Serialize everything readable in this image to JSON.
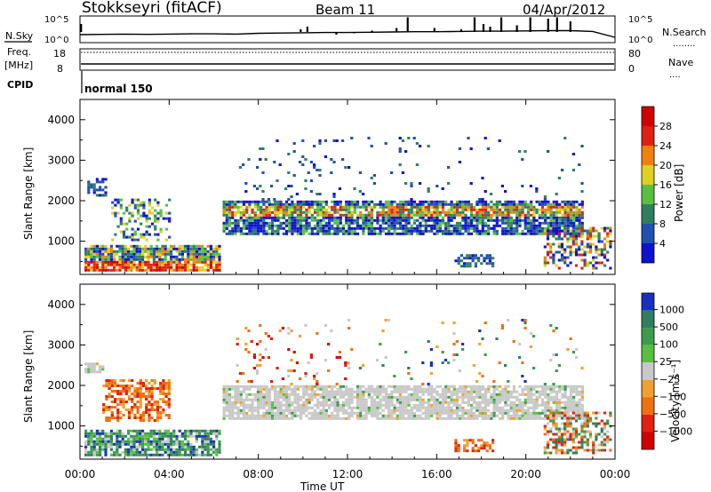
{
  "header": {
    "station": "Stokkseyri (fitACF)",
    "beam": "Beam 11",
    "date": "04/Apr/2012"
  },
  "chart_data": [
    {
      "type": "line",
      "name": "noise-panel",
      "left_labels": {
        "nsky": "N.Sky"
      },
      "right_labels": {
        "nsearch": "N.Search",
        "nsearch_dots": "........"
      },
      "left_ticks": [
        "10^5",
        "10^0"
      ],
      "right_ticks": [
        "10^5",
        "10^0"
      ],
      "x": [
        0,
        1,
        2,
        3,
        4,
        5,
        6,
        7,
        8,
        9,
        10,
        11,
        12,
        13,
        14,
        15,
        16,
        17,
        18,
        19,
        20,
        21,
        22,
        23,
        24
      ],
      "series": [
        {
          "values": [
            0.3,
            0.31,
            0.32,
            0.31,
            0.32,
            0.33,
            0.33,
            0.32,
            0.35,
            0.36,
            0.37,
            0.38,
            0.38,
            0.39,
            0.4,
            0.41,
            0.41,
            0.42,
            0.43,
            0.43,
            0.44,
            0.45,
            0.45,
            0.42,
            0.2
          ]
        }
      ],
      "spikes": [
        {
          "x": 0.05,
          "h": 0.7
        },
        {
          "x": 9.9,
          "h": 0.5
        },
        {
          "x": 10.2,
          "h": 0.6
        },
        {
          "x": 11.5,
          "h": 0.3
        },
        {
          "x": 12.3,
          "h": 0.35
        },
        {
          "x": 13.1,
          "h": 0.45
        },
        {
          "x": 14.2,
          "h": 0.55
        },
        {
          "x": 14.7,
          "h": 0.95
        },
        {
          "x": 15.3,
          "h": 0.4
        },
        {
          "x": 15.9,
          "h": 0.55
        },
        {
          "x": 17.1,
          "h": 0.5
        },
        {
          "x": 17.7,
          "h": 0.95
        },
        {
          "x": 18.1,
          "h": 0.7
        },
        {
          "x": 18.4,
          "h": 0.6
        },
        {
          "x": 18.9,
          "h": 0.95
        },
        {
          "x": 19.6,
          "h": 0.65
        },
        {
          "x": 20.2,
          "h": 0.95
        },
        {
          "x": 21.0,
          "h": 0.9
        },
        {
          "x": 21.4,
          "h": 0.95
        },
        {
          "x": 22.0,
          "h": 0.8
        }
      ]
    },
    {
      "type": "line",
      "name": "freq-panel",
      "left_labels": {
        "freq": "Freq.",
        "unit": "[MHz]",
        "cpid": "CPID"
      },
      "right_labels": {
        "nave": "Nave",
        "nave_dots": "...."
      },
      "left_ticks": [
        "18",
        "8"
      ],
      "right_ticks": [
        "80",
        "0"
      ],
      "freq_value": 11.5,
      "nave_value": 78,
      "cpid_name": "normal 150"
    },
    {
      "type": "heatmap",
      "name": "power-panel",
      "ylabel": "Slant Range [km]",
      "ylim": [
        180,
        4500
      ],
      "yticks": [
        1000,
        2000,
        3000,
        4000
      ],
      "xlim": [
        0,
        24
      ],
      "colorbar": {
        "label": "Power [dB]",
        "ticks": [
          "4",
          "8",
          "12",
          "16",
          "20",
          "24",
          "28"
        ],
        "colors": [
          "#1010d0",
          "#2050b0",
          "#2f7f5f",
          "#58c040",
          "#e0d020",
          "#f08010",
          "#e02010",
          "#d00000"
        ]
      },
      "regions": [
        {
          "x0": 0.2,
          "x1": 6.2,
          "r0": 250,
          "r1": 900,
          "profile": "hot"
        },
        {
          "x0": 0.2,
          "x1": 1.2,
          "r0": 2100,
          "r1": 2550,
          "profile": "weak"
        },
        {
          "x0": 1.4,
          "x1": 4.0,
          "r0": 1000,
          "r1": 2050,
          "profile": "patchy"
        },
        {
          "x0": 6.4,
          "x1": 22.5,
          "r0": 1150,
          "r1": 1950,
          "profile": "band"
        },
        {
          "x0": 7.0,
          "x1": 12.0,
          "r0": 2000,
          "r1": 3500,
          "profile": "scatter"
        },
        {
          "x0": 12.0,
          "x1": 22.5,
          "r0": 2000,
          "r1": 3600,
          "profile": "sparse"
        },
        {
          "x0": 16.8,
          "x1": 18.5,
          "r0": 350,
          "r1": 650,
          "profile": "weak"
        },
        {
          "x0": 20.8,
          "x1": 23.8,
          "r0": 300,
          "r1": 1300,
          "profile": "mixed"
        }
      ]
    },
    {
      "type": "heatmap",
      "name": "velocity-panel",
      "ylabel": "Slant Range [km]",
      "xlabel": "Time UT",
      "ylim": [
        180,
        4500
      ],
      "yticks": [
        1000,
        2000,
        3000,
        4000
      ],
      "xlim": [
        0,
        24
      ],
      "xticks": [
        "00:00",
        "04:00",
        "08:00",
        "12:00",
        "16:00",
        "20:00",
        "00:00"
      ],
      "colorbar": {
        "label": "Velocity [m s⁻¹]",
        "ticks": [
          "1000",
          "500",
          "100",
          "25",
          "−25",
          "−100",
          "−500",
          "−1000"
        ],
        "colors": [
          "#1830c0",
          "#2f7f5f",
          "#3c9c4c",
          "#58c040",
          "#c8c8c8",
          "#f0a030",
          "#f07010",
          "#e02010",
          "#d00000"
        ]
      },
      "regions": [
        {
          "x0": 0.2,
          "x1": 6.2,
          "r0": 250,
          "r1": 900,
          "profile": "green"
        },
        {
          "x0": 0.2,
          "x1": 1.0,
          "r0": 2300,
          "r1": 2550,
          "profile": "gray"
        },
        {
          "x0": 1.0,
          "x1": 4.0,
          "r0": 1100,
          "r1": 2100,
          "profile": "orange"
        },
        {
          "x0": 6.4,
          "x1": 22.5,
          "r0": 1150,
          "r1": 1950,
          "profile": "gray"
        },
        {
          "x0": 7.0,
          "x1": 12.0,
          "r0": 2000,
          "r1": 3500,
          "profile": "redorange"
        },
        {
          "x0": 12.0,
          "x1": 22.5,
          "r0": 2000,
          "r1": 3600,
          "profile": "mixedsparse"
        },
        {
          "x0": 16.8,
          "x1": 18.5,
          "r0": 350,
          "r1": 650,
          "profile": "orange"
        },
        {
          "x0": 20.8,
          "x1": 23.8,
          "r0": 300,
          "r1": 1300,
          "profile": "orangegreen"
        }
      ]
    }
  ]
}
